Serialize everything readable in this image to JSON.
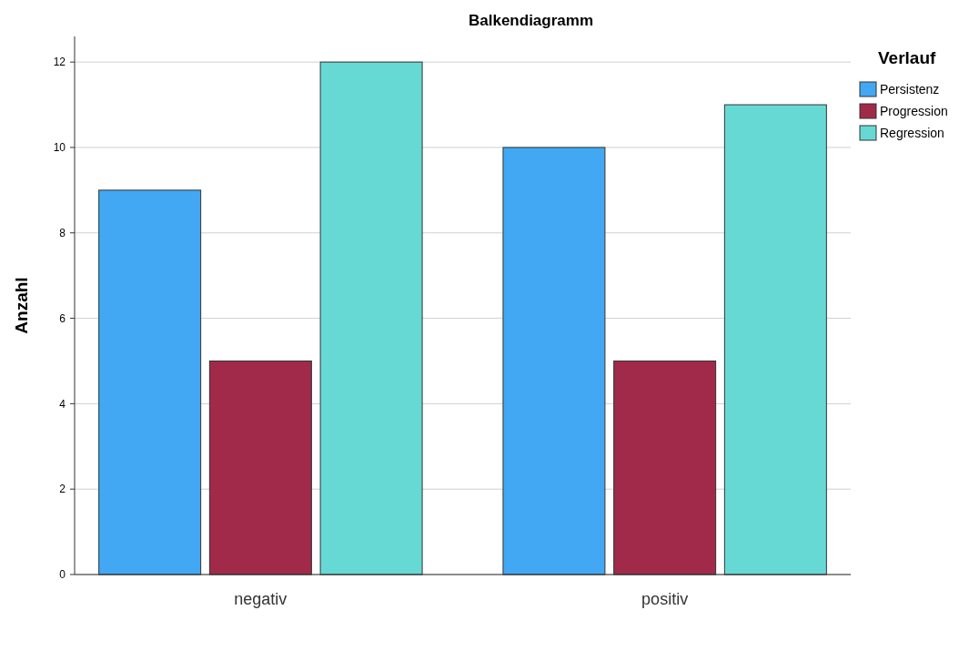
{
  "chart_data": {
    "type": "bar",
    "title": "Balkendiagramm",
    "ylabel": "Anzahl",
    "legend_title": "Verlauf",
    "categories": [
      "negativ",
      "positiv"
    ],
    "series": [
      {
        "name": "Persistenz",
        "color": "#42a8f4",
        "values": [
          9,
          10
        ]
      },
      {
        "name": "Progression",
        "color": "#a12a4b",
        "values": [
          5,
          5
        ]
      },
      {
        "name": "Regression",
        "color": "#66d9d5",
        "values": [
          12,
          11
        ]
      }
    ],
    "ylim": [
      0,
      12.6
    ],
    "yticks": [
      0,
      2,
      4,
      6,
      8,
      10,
      12
    ],
    "grid": "y",
    "legend": "top right"
  }
}
